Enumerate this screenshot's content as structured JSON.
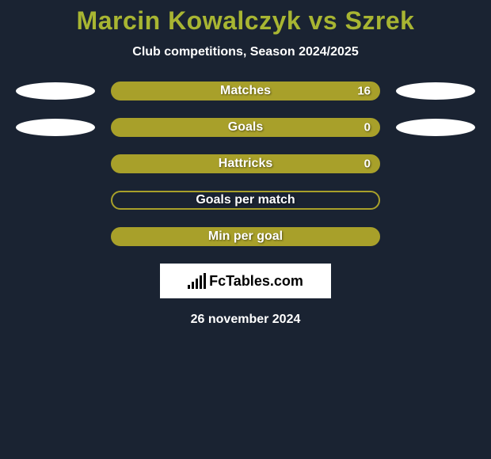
{
  "title": "Marcin Kowalczyk vs Szrek",
  "subtitle": "Club competitions, Season 2024/2025",
  "date_text": "26 november 2024",
  "logo_text": "FcTables.com",
  "bar_border_color": "#a8a02a",
  "bar_fill_color": "#a8a02a",
  "ellipse_color": "#ffffff",
  "background_color": "#1a2332",
  "title_color": "#a8b532",
  "text_color": "#ffffff",
  "rows": [
    {
      "label": "Matches",
      "value": "16",
      "left_ellipse": true,
      "right_ellipse": true,
      "filled": true
    },
    {
      "label": "Goals",
      "value": "0",
      "left_ellipse": true,
      "right_ellipse": true,
      "filled": true
    },
    {
      "label": "Hattricks",
      "value": "0",
      "left_ellipse": false,
      "right_ellipse": false,
      "filled": true
    },
    {
      "label": "Goals per match",
      "value": "",
      "left_ellipse": false,
      "right_ellipse": false,
      "filled": false
    },
    {
      "label": "Min per goal",
      "value": "",
      "left_ellipse": false,
      "right_ellipse": false,
      "filled": true
    }
  ]
}
